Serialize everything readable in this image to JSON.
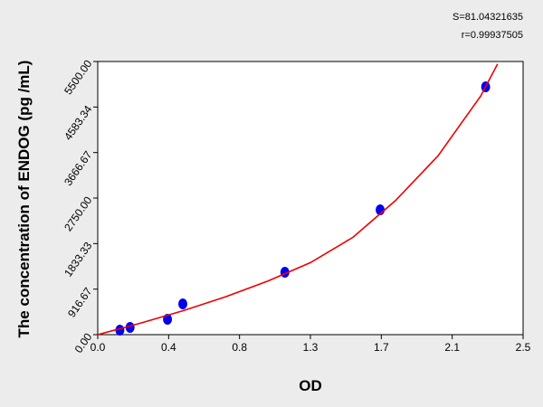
{
  "chart_data": {
    "type": "scatter",
    "stats": [
      "S=81.04321635",
      "r=0.99937505"
    ],
    "x_label": "OD",
    "y_label": "The concentration of ENDOG (pg /mL)",
    "xlim": [
      0,
      2.5
    ],
    "xticks": [
      {
        "value": 0,
        "label": "0.0"
      },
      {
        "value": 0.41667,
        "label": "0.4"
      },
      {
        "value": 0.83333,
        "label": "0.8"
      },
      {
        "value": 1.25,
        "label": "1.3"
      },
      {
        "value": 1.66667,
        "label": "1.7"
      },
      {
        "value": 2.08333,
        "label": "2.1"
      },
      {
        "value": 2.5,
        "label": "2.5"
      }
    ],
    "ylim": [
      0,
      5500
    ],
    "yticks": [
      {
        "value": 0,
        "label": "0.00"
      },
      {
        "value": 916.67,
        "label": "916.67"
      },
      {
        "value": 1833.33,
        "label": "1833.33"
      },
      {
        "value": 2750,
        "label": "2750.00"
      },
      {
        "value": 3666.67,
        "label": "3666.67"
      },
      {
        "value": 4583.34,
        "label": "4583.34"
      },
      {
        "value": 5500,
        "label": "5500.00"
      }
    ],
    "series": [
      {
        "kind": "points",
        "color": "#0000ee",
        "x": [
          0.13,
          0.19,
          0.41,
          0.5,
          1.1,
          1.66,
          2.28
        ],
        "values": [
          90,
          145,
          310,
          620,
          1257,
          2513,
          4990
        ]
      },
      {
        "kind": "curve",
        "color": "#ee0000",
        "x": [
          0,
          0.25,
          0.5,
          0.75,
          1.0,
          1.25,
          1.5,
          1.75,
          2.0,
          2.25,
          2.35
        ],
        "values": [
          0,
          230,
          480,
          760,
          1080,
          1450,
          1960,
          2700,
          3600,
          4800,
          5450
        ]
      }
    ]
  }
}
